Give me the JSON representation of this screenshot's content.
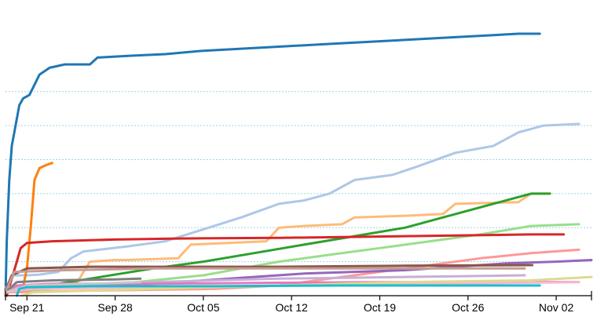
{
  "chart_data": {
    "type": "line",
    "title": "",
    "xlabel": "",
    "ylabel": "",
    "x_tick_labels": [
      {
        "label": "Sep 21",
        "day": 0
      },
      {
        "label": "Sep 28",
        "day": 7
      },
      {
        "label": "Oct 05",
        "day": 14
      },
      {
        "label": "Oct 12",
        "day": 21
      },
      {
        "label": "Oct 19",
        "day": 28
      },
      {
        "label": "Oct 26",
        "day": 35
      },
      {
        "label": "Nov 02",
        "day": 42
      }
    ],
    "xlim": [
      -1.7,
      44.8
    ],
    "ylim": [
      0,
      800
    ],
    "y_gridlines": [
      100,
      200,
      300,
      400,
      500,
      600
    ],
    "grid": "horizontal dashed",
    "legend": "none",
    "series": [
      {
        "color": "#1f77b4",
        "points": [
          [
            -1.7,
            0
          ],
          [
            -1.6,
            160
          ],
          [
            -1.4,
            340
          ],
          [
            -1.2,
            440
          ],
          [
            -1,
            480
          ],
          [
            -0.6,
            560
          ],
          [
            -0.3,
            580
          ],
          [
            0.2,
            590
          ],
          [
            1,
            650
          ],
          [
            1.8,
            670
          ],
          [
            3,
            680
          ],
          [
            5,
            680
          ],
          [
            5.6,
            700
          ],
          [
            8,
            705
          ],
          [
            11,
            710
          ],
          [
            14,
            720
          ],
          [
            19,
            730
          ],
          [
            24,
            740
          ],
          [
            29,
            750
          ],
          [
            34,
            760
          ],
          [
            39,
            770
          ],
          [
            40.7,
            770
          ]
        ]
      },
      {
        "color": "#aec7e8",
        "points": [
          [
            -1.7,
            10
          ],
          [
            -1.3,
            50
          ],
          [
            -1,
            60
          ],
          [
            0,
            60
          ],
          [
            1,
            62
          ],
          [
            2.5,
            70
          ],
          [
            3.5,
            110
          ],
          [
            4.5,
            130
          ],
          [
            8,
            145
          ],
          [
            11,
            160
          ],
          [
            14,
            195
          ],
          [
            17,
            230
          ],
          [
            20,
            270
          ],
          [
            22,
            280
          ],
          [
            24,
            300
          ],
          [
            26,
            340
          ],
          [
            29,
            355
          ],
          [
            31,
            380
          ],
          [
            34,
            420
          ],
          [
            37,
            440
          ],
          [
            39,
            480
          ],
          [
            41,
            500
          ],
          [
            43.8,
            505
          ]
        ]
      },
      {
        "color": "#ff7f0e",
        "points": [
          [
            -0.4,
            10
          ],
          [
            0,
            80
          ],
          [
            0.3,
            200
          ],
          [
            0.6,
            340
          ],
          [
            1,
            375
          ],
          [
            1.6,
            385
          ],
          [
            2,
            390
          ]
        ]
      },
      {
        "color": "#ffbb78",
        "points": [
          [
            -1.7,
            5
          ],
          [
            -1,
            20
          ],
          [
            1,
            25
          ],
          [
            3,
            30
          ],
          [
            4,
            40
          ],
          [
            5,
            100
          ],
          [
            7,
            105
          ],
          [
            8,
            105
          ],
          [
            12,
            110
          ],
          [
            13,
            150
          ],
          [
            16,
            155
          ],
          [
            19,
            160
          ],
          [
            20,
            200
          ],
          [
            22,
            205
          ],
          [
            25,
            210
          ],
          [
            26,
            230
          ],
          [
            30,
            235
          ],
          [
            33,
            240
          ],
          [
            34,
            270
          ],
          [
            39,
            275
          ],
          [
            40,
            300
          ],
          [
            41.5,
            300
          ]
        ]
      },
      {
        "color": "#2ca02c",
        "points": [
          [
            -1.7,
            10
          ],
          [
            0,
            20
          ],
          [
            5,
            50
          ],
          [
            10,
            80
          ],
          [
            14,
            100
          ],
          [
            18,
            125
          ],
          [
            22,
            150
          ],
          [
            26,
            175
          ],
          [
            30,
            200
          ],
          [
            34,
            240
          ],
          [
            38,
            280
          ],
          [
            40,
            300
          ],
          [
            41.5,
            300
          ]
        ]
      },
      {
        "color": "#98df8a",
        "points": [
          [
            -1.7,
            15
          ],
          [
            2,
            20
          ],
          [
            6,
            30
          ],
          [
            10,
            45
          ],
          [
            14,
            60
          ],
          [
            17,
            80
          ],
          [
            20,
            100
          ],
          [
            24,
            120
          ],
          [
            28,
            140
          ],
          [
            32,
            160
          ],
          [
            36,
            180
          ],
          [
            40,
            205
          ],
          [
            43.8,
            210
          ]
        ]
      },
      {
        "color": "#d62728",
        "points": [
          [
            -1.6,
            0
          ],
          [
            -1.2,
            50
          ],
          [
            -0.8,
            100
          ],
          [
            -0.5,
            140
          ],
          [
            0,
            155
          ],
          [
            2,
            160
          ],
          [
            7,
            165
          ],
          [
            12,
            168
          ],
          [
            20,
            170
          ],
          [
            30,
            175
          ],
          [
            40,
            180
          ],
          [
            42.6,
            180
          ]
        ]
      },
      {
        "color": "#ff9896",
        "points": [
          [
            -1.7,
            10
          ],
          [
            5,
            15
          ],
          [
            15,
            20
          ],
          [
            20,
            30
          ],
          [
            24,
            50
          ],
          [
            28,
            70
          ],
          [
            32,
            90
          ],
          [
            36,
            110
          ],
          [
            40,
            125
          ],
          [
            43.8,
            135
          ]
        ]
      },
      {
        "color": "#9467bd",
        "points": [
          [
            -1.7,
            20
          ],
          [
            5,
            25
          ],
          [
            10,
            35
          ],
          [
            14,
            45
          ],
          [
            18,
            55
          ],
          [
            22,
            65
          ],
          [
            26,
            70
          ],
          [
            30,
            75
          ],
          [
            34,
            85
          ],
          [
            38,
            95
          ],
          [
            42,
            100
          ],
          [
            44.8,
            105
          ]
        ]
      },
      {
        "color": "#c5b0d5",
        "points": [
          [
            -1.7,
            25
          ],
          [
            5,
            30
          ],
          [
            10,
            40
          ],
          [
            20,
            50
          ],
          [
            30,
            55
          ],
          [
            39.5,
            60
          ]
        ]
      },
      {
        "color": "#8c564b",
        "points": [
          [
            -1.7,
            15
          ],
          [
            -1.2,
            60
          ],
          [
            0,
            80
          ],
          [
            5,
            85
          ],
          [
            10,
            85
          ],
          [
            20,
            85
          ],
          [
            30,
            88
          ],
          [
            40.1,
            90
          ]
        ]
      },
      {
        "color": "#c49c94",
        "points": [
          [
            -1.7,
            10
          ],
          [
            -1,
            70
          ],
          [
            3,
            75
          ],
          [
            10,
            80
          ],
          [
            20,
            80
          ],
          [
            30,
            80
          ],
          [
            39.5,
            80
          ]
        ]
      },
      {
        "color": "#e377c2",
        "points": [
          [
            -1.7,
            10
          ],
          [
            -0.8,
            30
          ],
          [
            2,
            35
          ],
          [
            10,
            35
          ],
          [
            20,
            38
          ],
          [
            30,
            40
          ],
          [
            40,
            40
          ],
          [
            43.8,
            40
          ]
        ]
      },
      {
        "color": "#f7b6d2",
        "points": [
          [
            -1.7,
            10
          ],
          [
            0,
            20
          ],
          [
            10,
            25
          ],
          [
            20,
            30
          ],
          [
            30,
            35
          ],
          [
            40,
            38
          ],
          [
            43.8,
            40
          ]
        ]
      },
      {
        "color": "#7f7f7f",
        "points": [
          [
            -1.7,
            10
          ],
          [
            -0.8,
            40
          ],
          [
            2,
            45
          ],
          [
            7,
            48
          ],
          [
            9,
            50
          ]
        ]
      },
      {
        "color": "#c7c7c7",
        "points": [
          [
            -1.7,
            10
          ],
          [
            0,
            30
          ],
          [
            5,
            35
          ],
          [
            9,
            40
          ]
        ]
      },
      {
        "color": "#dbdb8d",
        "points": [
          [
            -0.4,
            0
          ],
          [
            0.5,
            10
          ],
          [
            5,
            15
          ],
          [
            10,
            20
          ],
          [
            20,
            30
          ],
          [
            30,
            40
          ],
          [
            40,
            45
          ],
          [
            44.8,
            55
          ]
        ]
      },
      {
        "color": "#17becf",
        "points": [
          [
            -0.8,
            0
          ],
          [
            -0.6,
            20
          ],
          [
            0,
            25
          ],
          [
            5,
            28
          ],
          [
            15,
            28
          ],
          [
            25,
            30
          ],
          [
            35,
            30
          ],
          [
            40.7,
            30
          ]
        ]
      }
    ]
  }
}
